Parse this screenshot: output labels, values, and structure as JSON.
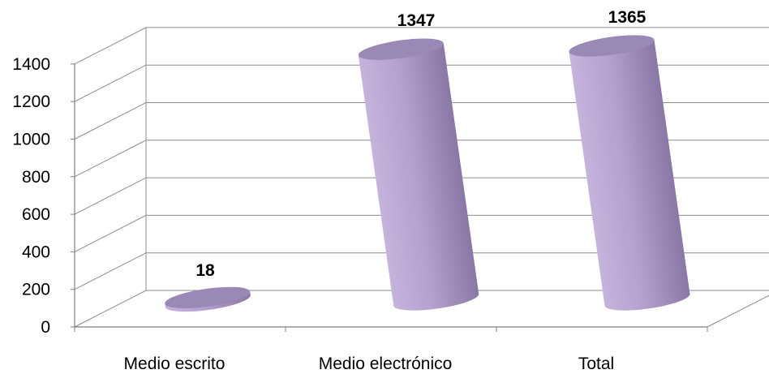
{
  "chart_data": {
    "type": "bar",
    "style": "3d-cylinder",
    "categories": [
      "Medio escrito",
      "Medio electrónico",
      "Total"
    ],
    "values": [
      18,
      1347,
      1365
    ],
    "data_labels": [
      "18",
      "1347",
      "1365"
    ],
    "ylim": [
      0,
      1400
    ],
    "yticks": [
      "0",
      "200",
      "400",
      "600",
      "800",
      "1000",
      "1200",
      "1400"
    ],
    "grid": true,
    "legend": "none",
    "colors": {
      "bar_light": "#c6b3dc",
      "bar_mid": "#b5a0cf",
      "bar_dark": "#8a77a6",
      "bar_top": "#9a88b6",
      "gridline": "#8c8c8c"
    }
  }
}
